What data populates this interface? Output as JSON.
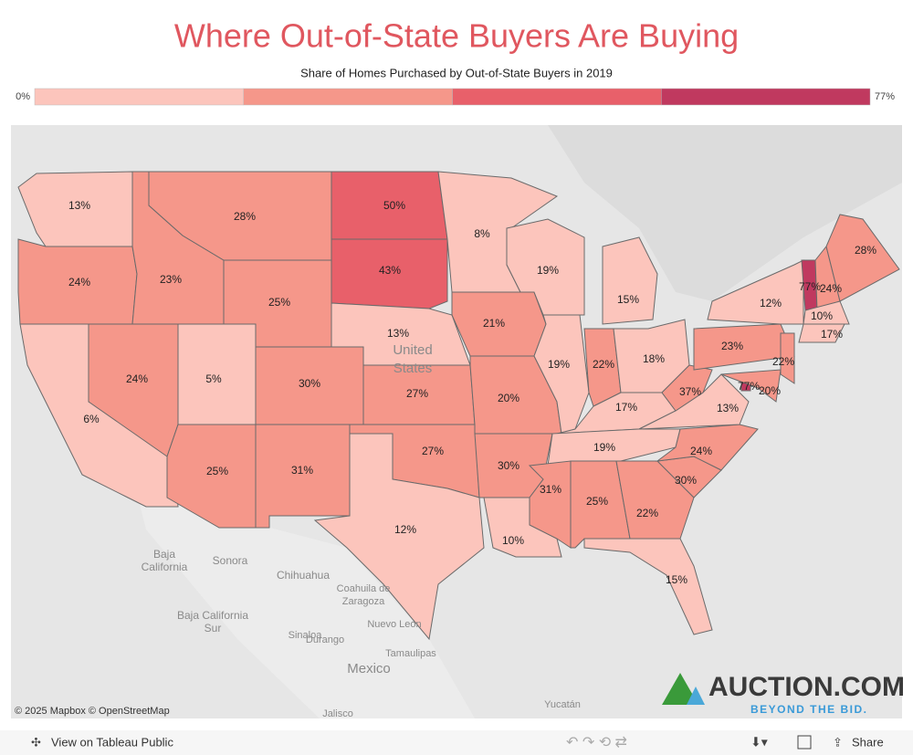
{
  "header": {
    "title": "Where Out-of-State Buyers Are Buying",
    "subtitle": "Share of Homes Purchased by Out-of-State Buyers in 2019"
  },
  "legend": {
    "min": {
      "value": 0,
      "label": "0%"
    },
    "max": {
      "value": 77,
      "label": "77%"
    },
    "colors": [
      "#fcc5bc",
      "#f5978a",
      "#e8606a",
      "#c0395f"
    ]
  },
  "map": {
    "values": [
      13,
      24,
      6,
      24,
      23,
      28,
      25,
      5,
      30,
      25,
      31,
      50,
      43,
      13,
      27,
      27,
      12,
      8,
      21,
      20,
      30,
      10,
      19,
      19,
      15,
      22,
      18,
      17,
      19,
      31,
      25,
      22,
      15,
      30,
      24,
      13,
      37,
      23,
      12,
      77,
      24,
      28,
      10,
      17,
      22,
      77,
      20
    ],
    "value_labels": [
      "13%",
      "24%",
      "6%",
      "24%",
      "23%",
      "28%",
      "25%",
      "5%",
      "30%",
      "25%",
      "31%",
      "50%",
      "43%",
      "13%",
      "27%",
      "27%",
      "12%",
      "8%",
      "21%",
      "20%",
      "30%",
      "10%",
      "19%",
      "19%",
      "15%",
      "22%",
      "18%",
      "17%",
      "19%",
      "31%",
      "25%",
      "22%",
      "15%",
      "30%",
      "24%",
      "13%",
      "37%",
      "23%",
      "12%",
      "77%",
      "24%",
      "28%",
      "10%",
      "17%",
      "22%",
      "77%",
      "20%"
    ],
    "place_labels": [
      "United",
      "States",
      "Baja",
      "California",
      "Sonora",
      "Chihuahua",
      "Coahuila de",
      "Zaragoza",
      "Baja California",
      "Sur",
      "Nuevo León",
      "Sinaloa",
      "Durango",
      "Tamaulipas",
      "Mexico",
      "Jalisco",
      "Yucatán"
    ],
    "attribution": "© 2025 Mapbox © OpenStreetMap"
  },
  "logo": {
    "name": "AUCTION.COM",
    "tagline": "BEYOND THE BID."
  },
  "toolbar": {
    "view": "View on Tableau Public",
    "share": "Share"
  }
}
